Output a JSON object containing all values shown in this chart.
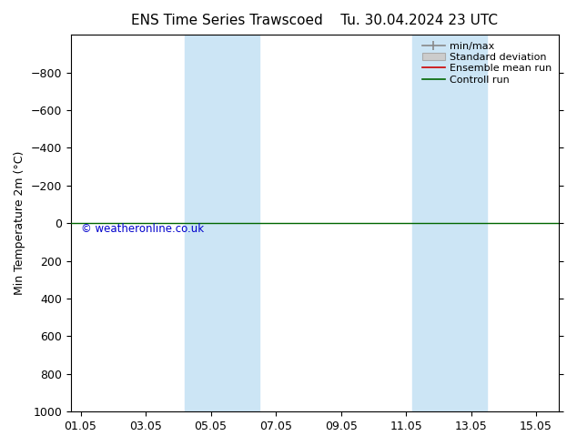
{
  "title_left": "ENS Time Series Trawscoed",
  "title_right": "Tu. 30.04.2024 23 UTC",
  "ylabel": "Min Temperature 2m (°C)",
  "ylim_inverted": [
    -1000,
    1000
  ],
  "yticks": [
    -800,
    -600,
    -400,
    -200,
    0,
    200,
    400,
    600,
    800,
    1000
  ],
  "xtick_labels": [
    "01.05",
    "03.05",
    "05.05",
    "07.05",
    "09.05",
    "11.05",
    "13.05",
    "15.05"
  ],
  "xtick_positions": [
    0,
    2,
    4,
    6,
    8,
    10,
    12,
    14
  ],
  "xlim": [
    -0.3,
    14.7
  ],
  "blue_bands": [
    [
      3.2,
      4.2
    ],
    [
      4.2,
      5.5
    ],
    [
      10.2,
      11.2
    ],
    [
      11.2,
      12.5
    ]
  ],
  "blue_band_color": "#cce5f5",
  "control_run_y": 0,
  "control_run_color": "#006600",
  "ensemble_mean_color": "#cc0000",
  "minmax_color": "#888888",
  "std_dev_color": "#cccccc",
  "watermark": "© weatheronline.co.uk",
  "watermark_color": "#0000cc",
  "background_color": "#ffffff",
  "legend_labels": [
    "min/max",
    "Standard deviation",
    "Ensemble mean run",
    "Controll run"
  ],
  "legend_colors": [
    "#888888",
    "#cccccc",
    "#cc0000",
    "#006600"
  ],
  "title_fontsize": 11,
  "axis_fontsize": 9,
  "tick_fontsize": 9,
  "legend_fontsize": 8
}
